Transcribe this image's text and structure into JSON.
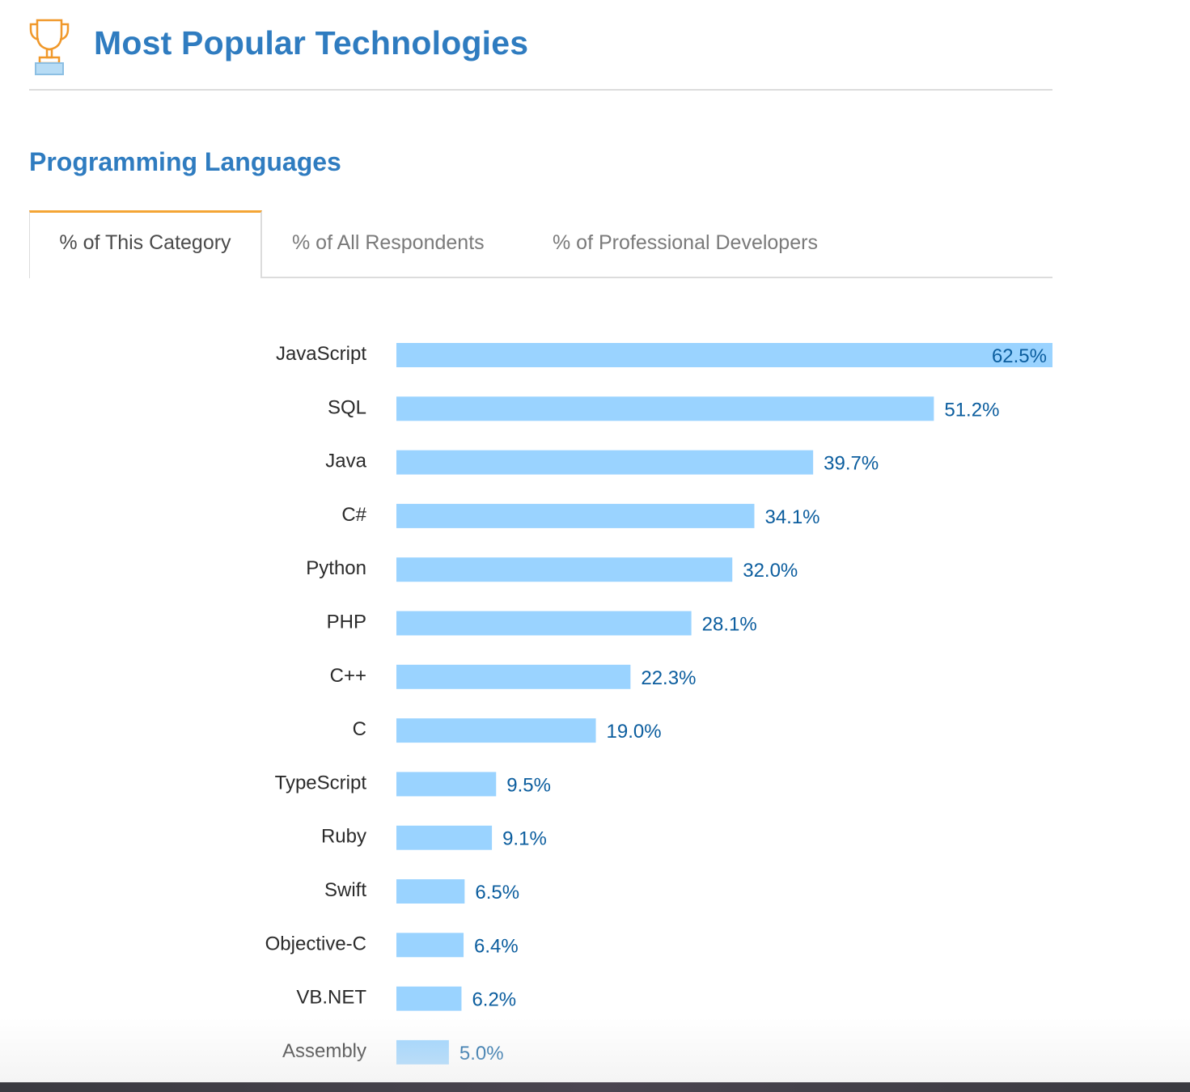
{
  "header": {
    "icon": "trophy-icon",
    "title": "Most Popular Technologies"
  },
  "section": {
    "title": "Programming Languages"
  },
  "tabs": [
    {
      "label": "% of This Category",
      "active": true
    },
    {
      "label": "% of All Respondents",
      "active": false
    },
    {
      "label": "% of Professional Developers",
      "active": false
    }
  ],
  "colors": {
    "accent": "#2f7cc0",
    "bar": "#9ad3ff",
    "value_text": "#0b5d9e",
    "tab_active_border": "#f4a535",
    "icon": "#f0982a"
  },
  "chart_data": {
    "type": "bar",
    "orientation": "horizontal",
    "categories": [
      "JavaScript",
      "SQL",
      "Java",
      "C#",
      "Python",
      "PHP",
      "C++",
      "C",
      "TypeScript",
      "Ruby",
      "Swift",
      "Objective-C",
      "VB.NET",
      "Assembly"
    ],
    "values": [
      62.5,
      51.2,
      39.7,
      34.1,
      32.0,
      28.1,
      22.3,
      19.0,
      9.5,
      9.1,
      6.5,
      6.4,
      6.2,
      5.0
    ],
    "value_labels": [
      "62.5%",
      "51.2%",
      "39.7%",
      "34.1%",
      "32.0%",
      "28.1%",
      "22.3%",
      "19.0%",
      "9.5%",
      "9.1%",
      "6.5%",
      "6.4%",
      "6.2%",
      "5.0%"
    ],
    "unit": "%",
    "xlim": [
      0,
      62.5
    ],
    "grid": false,
    "legend": "none",
    "title": "",
    "xlabel": "",
    "ylabel": ""
  }
}
